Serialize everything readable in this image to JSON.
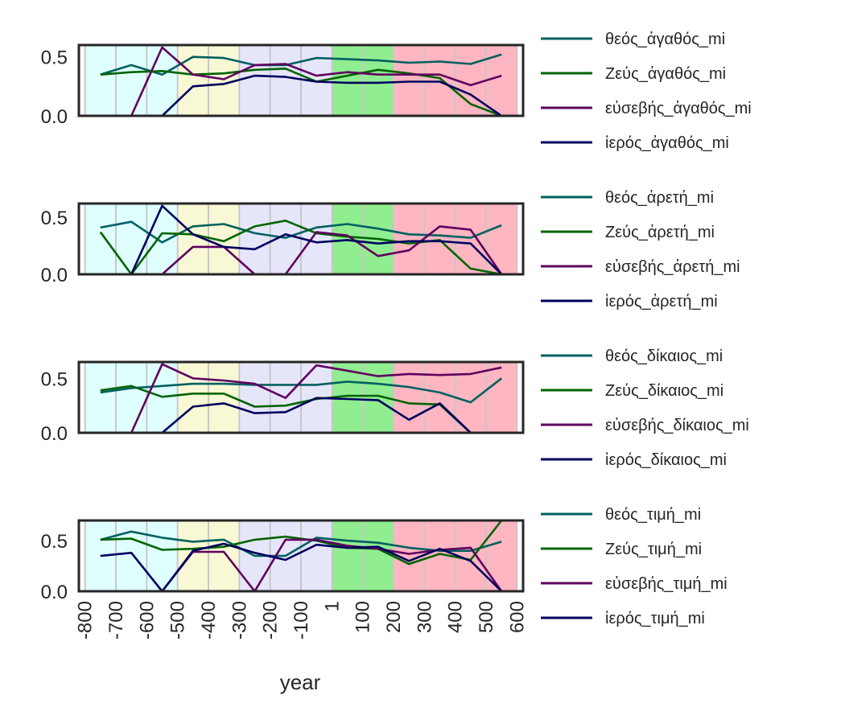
{
  "chart_data": {
    "type": "line",
    "xlabel": "year",
    "x_tick_labels": [
      "-800",
      "-700",
      "-600",
      "-500",
      "-400",
      "-300",
      "-200",
      "-100",
      "1",
      "100",
      "200",
      "300",
      "400",
      "500",
      "600"
    ],
    "x_tick_values": [
      -800,
      -700,
      -600,
      -500,
      -400,
      -300,
      -200,
      -100,
      1,
      100,
      200,
      300,
      400,
      500,
      600
    ],
    "x": [
      -750,
      -650,
      -550,
      -450,
      -350,
      -250,
      -150,
      -50,
      50,
      150,
      250,
      350,
      450,
      550
    ],
    "xlim": [
      -820,
      620
    ],
    "period_bands": [
      {
        "from": -800,
        "to": -500,
        "color": "#dfffff"
      },
      {
        "from": -500,
        "to": -300,
        "color": "#f8f8d5"
      },
      {
        "from": -300,
        "to": 1,
        "color": "#e6e6fa"
      },
      {
        "from": 1,
        "to": 200,
        "color": "#90ee90"
      },
      {
        "from": 200,
        "to": 600,
        "color": "#ffb6c1"
      }
    ],
    "colors": {
      "theos": "#006060",
      "zeus": "#006400",
      "eusebes": "#600060",
      "hieros": "#000060"
    },
    "panels": [
      {
        "ylim": [
          0,
          0.6
        ],
        "yticks": [
          "0.0",
          "0.5"
        ],
        "ytick_values": [
          0,
          0.5
        ],
        "series": [
          {
            "name": "θεός_ἀγαθός_mi",
            "color_key": "theos",
            "values": [
              0.35,
              0.43,
              0.35,
              0.5,
              0.49,
              0.43,
              0.43,
              0.49,
              0.48,
              0.47,
              0.45,
              0.46,
              0.44,
              0.52
            ]
          },
          {
            "name": "Ζεύς_ἀγαθός_mi",
            "color_key": "zeus",
            "values": [
              0.35,
              0.37,
              0.38,
              0.35,
              0.36,
              0.39,
              0.4,
              0.29,
              0.34,
              0.39,
              0.36,
              0.32,
              0.1,
              0.0
            ]
          },
          {
            "name": "εὐσεβής_ἀγαθός_mi",
            "color_key": "eusebes",
            "values": [
              0.0,
              0.0,
              0.58,
              0.35,
              0.31,
              0.43,
              0.44,
              0.34,
              0.37,
              0.35,
              0.35,
              0.35,
              0.26,
              0.34
            ]
          },
          {
            "name": "ἱερός_ἀγαθός_mi",
            "color_key": "hieros",
            "values": [
              0.0,
              0.0,
              0.0,
              0.25,
              0.27,
              0.34,
              0.33,
              0.29,
              0.28,
              0.28,
              0.29,
              0.29,
              0.18,
              0.0
            ]
          }
        ]
      },
      {
        "ylim": [
          0,
          0.62
        ],
        "yticks": [
          "0.0",
          "0.5"
        ],
        "ytick_values": [
          0,
          0.5
        ],
        "series": [
          {
            "name": "θεός_ἀρετή_mi",
            "color_key": "theos",
            "values": [
              0.41,
              0.46,
              0.28,
              0.42,
              0.44,
              0.36,
              0.32,
              0.41,
              0.44,
              0.4,
              0.35,
              0.34,
              0.32,
              0.43
            ]
          },
          {
            "name": "Ζεύς_ἀρετή_mi",
            "color_key": "zeus",
            "values": [
              0.37,
              0.0,
              0.36,
              0.35,
              0.29,
              0.42,
              0.47,
              0.36,
              0.33,
              0.31,
              0.27,
              0.3,
              0.05,
              0.0
            ]
          },
          {
            "name": "εὐσεβής_ἀρετή_mi",
            "color_key": "eusebes",
            "values": [
              0.0,
              0.0,
              0.0,
              0.24,
              0.24,
              0.0,
              0.0,
              0.37,
              0.34,
              0.16,
              0.21,
              0.42,
              0.39,
              0.0
            ]
          },
          {
            "name": "ἱερός_ἀρετή_mi",
            "color_key": "hieros",
            "values": [
              0.0,
              0.0,
              0.6,
              0.35,
              0.24,
              0.22,
              0.35,
              0.28,
              0.3,
              0.27,
              0.29,
              0.29,
              0.27,
              0.0
            ]
          }
        ]
      },
      {
        "ylim": [
          0,
          0.65
        ],
        "yticks": [
          "0.0",
          "0.5"
        ],
        "ytick_values": [
          0,
          0.5
        ],
        "series": [
          {
            "name": "θεός_δίκαιος_mi",
            "color_key": "theos",
            "values": [
              0.37,
              0.41,
              0.43,
              0.45,
              0.45,
              0.44,
              0.44,
              0.44,
              0.47,
              0.45,
              0.42,
              0.37,
              0.28,
              0.5
            ]
          },
          {
            "name": "Ζεύς_δίκαιος_mi",
            "color_key": "zeus",
            "values": [
              0.39,
              0.43,
              0.33,
              0.36,
              0.36,
              0.24,
              0.25,
              0.31,
              0.34,
              0.34,
              0.27,
              0.26,
              0.0,
              0.0
            ]
          },
          {
            "name": "εὐσεβής_δίκαιος_mi",
            "color_key": "eusebes",
            "values": [
              0.0,
              0.0,
              0.63,
              0.5,
              0.48,
              0.45,
              0.32,
              0.62,
              0.57,
              0.52,
              0.54,
              0.53,
              0.54,
              0.6
            ]
          },
          {
            "name": "ἱερός_δίκαιος_mi",
            "color_key": "hieros",
            "values": [
              0.0,
              0.0,
              0.0,
              0.24,
              0.27,
              0.18,
              0.19,
              0.32,
              0.31,
              0.3,
              0.12,
              0.27,
              0.0,
              0.0
            ]
          }
        ]
      },
      {
        "ylim": [
          0,
          0.7
        ],
        "yticks": [
          "0.0",
          "0.5"
        ],
        "ytick_values": [
          0,
          0.5
        ],
        "series": [
          {
            "name": "θεός_τιμή_mi",
            "color_key": "theos",
            "values": [
              0.51,
              0.59,
              0.53,
              0.49,
              0.51,
              0.35,
              0.35,
              0.53,
              0.5,
              0.48,
              0.43,
              0.4,
              0.4,
              0.49
            ]
          },
          {
            "name": "Ζεύς_τιμή_mi",
            "color_key": "zeus",
            "values": [
              0.51,
              0.52,
              0.41,
              0.42,
              0.44,
              0.51,
              0.54,
              0.5,
              0.43,
              0.42,
              0.27,
              0.37,
              0.31,
              0.7
            ]
          },
          {
            "name": "εὐσεβής_τιμή_mi",
            "color_key": "eusebes",
            "values": [
              0.0,
              0.0,
              0.0,
              0.39,
              0.39,
              0.0,
              0.51,
              0.51,
              0.45,
              0.42,
              0.37,
              0.41,
              0.43,
              0.0
            ]
          },
          {
            "name": "ἱερός_τιμή_mi",
            "color_key": "hieros",
            "values": [
              0.35,
              0.38,
              0.0,
              0.4,
              0.47,
              0.38,
              0.31,
              0.46,
              0.43,
              0.44,
              0.3,
              0.42,
              0.3,
              0.0
            ]
          }
        ]
      }
    ]
  }
}
